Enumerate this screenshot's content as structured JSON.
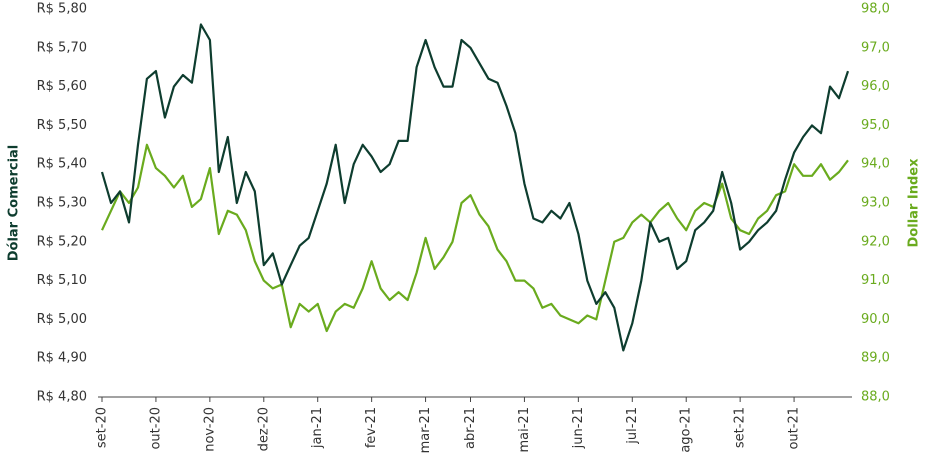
{
  "chart_data": {
    "type": "line",
    "y_label": "Dólar Comercial",
    "y2_label": "Dollar Index",
    "categories": [
      "set-20",
      null,
      null,
      null,
      null,
      null,
      "out-20",
      null,
      null,
      null,
      null,
      null,
      "nov-20",
      null,
      null,
      null,
      null,
      null,
      "dez-20",
      null,
      null,
      null,
      null,
      null,
      "jan-21",
      null,
      null,
      null,
      null,
      null,
      "fev-21",
      null,
      null,
      null,
      null,
      null,
      "mar-21",
      null,
      null,
      null,
      null,
      "abr-21",
      null,
      null,
      null,
      null,
      null,
      "mai-21",
      null,
      null,
      null,
      null,
      null,
      "jun-21",
      null,
      null,
      null,
      null,
      null,
      "jul-21",
      null,
      null,
      null,
      null,
      null,
      "ago-21",
      null,
      null,
      null,
      null,
      null,
      "set-21",
      null,
      null,
      null,
      null,
      null,
      "out-21",
      null,
      null,
      null,
      null,
      null,
      null
    ],
    "series": [
      {
        "name": "Dólar Comercial",
        "color": "#0e3d2f",
        "values": [
          5.38,
          5.3,
          5.33,
          5.25,
          5.45,
          5.62,
          5.64,
          5.52,
          5.6,
          5.63,
          5.61,
          5.76,
          5.72,
          5.38,
          5.47,
          5.3,
          5.38,
          5.33,
          5.14,
          5.17,
          5.09,
          5.14,
          5.19,
          5.21,
          5.28,
          5.35,
          5.45,
          5.3,
          5.4,
          5.45,
          5.42,
          5.38,
          5.4,
          5.46,
          5.46,
          5.65,
          5.72,
          5.65,
          5.6,
          5.6,
          5.72,
          5.7,
          5.66,
          5.62,
          5.61,
          5.55,
          5.48,
          5.35,
          5.26,
          5.25,
          5.28,
          5.26,
          5.3,
          5.22,
          5.1,
          5.04,
          5.07,
          5.03,
          4.92,
          4.99,
          5.1,
          5.25,
          5.2,
          5.21,
          5.13,
          5.15,
          5.23,
          5.25,
          5.28,
          5.38,
          5.3,
          5.18,
          5.2,
          5.23,
          5.25,
          5.28,
          5.36,
          5.43,
          5.47,
          5.5,
          5.48,
          5.6,
          5.57,
          5.64
        ]
      },
      {
        "name": "Dollar Index",
        "color": "#6aab1e",
        "axis": "y2",
        "values": [
          92.3,
          92.8,
          93.3,
          93.0,
          93.4,
          94.5,
          93.9,
          93.7,
          93.4,
          93.7,
          92.9,
          93.1,
          93.9,
          92.2,
          92.8,
          92.7,
          92.3,
          91.5,
          91.0,
          90.8,
          90.9,
          89.8,
          90.4,
          90.2,
          90.4,
          89.7,
          90.2,
          90.4,
          90.3,
          90.8,
          91.5,
          90.8,
          90.5,
          90.7,
          90.5,
          91.2,
          92.1,
          91.3,
          91.6,
          92.0,
          93.0,
          93.2,
          92.7,
          92.4,
          91.8,
          91.5,
          91.0,
          91.0,
          90.8,
          90.3,
          90.4,
          90.1,
          90.0,
          89.9,
          90.1,
          90.0,
          91.0,
          92.0,
          92.1,
          92.5,
          92.7,
          92.5,
          92.8,
          93.0,
          92.6,
          92.3,
          92.8,
          93.0,
          92.9,
          93.5,
          92.6,
          92.3,
          92.2,
          92.6,
          92.8,
          93.2,
          93.3,
          94.0,
          93.7,
          93.7,
          94.0,
          93.6,
          93.8,
          94.1
        ]
      }
    ],
    "ylim": [
      4.8,
      5.8
    ],
    "yticks": [
      {
        "value": 4.8,
        "label": "R$ 4,80"
      },
      {
        "value": 4.9,
        "label": "R$ 4,90"
      },
      {
        "value": 5.0,
        "label": "R$ 5,00"
      },
      {
        "value": 5.1,
        "label": "R$ 5,10"
      },
      {
        "value": 5.2,
        "label": "R$ 5,20"
      },
      {
        "value": 5.3,
        "label": "R$ 5,30"
      },
      {
        "value": 5.4,
        "label": "R$ 5,40"
      },
      {
        "value": 5.5,
        "label": "R$ 5,50"
      },
      {
        "value": 5.6,
        "label": "R$ 5,60"
      },
      {
        "value": 5.7,
        "label": "R$ 5,70"
      },
      {
        "value": 5.8,
        "label": "R$ 5,80"
      }
    ],
    "y2lim": [
      88,
      98
    ],
    "y2ticks": [
      {
        "value": 88,
        "label": "88,0"
      },
      {
        "value": 89,
        "label": "89,0"
      },
      {
        "value": 90,
        "label": "90,0"
      },
      {
        "value": 91,
        "label": "91,0"
      },
      {
        "value": 92,
        "label": "92,0"
      },
      {
        "value": 93,
        "label": "93,0"
      },
      {
        "value": 94,
        "label": "94,0"
      },
      {
        "value": 95,
        "label": "95,0"
      },
      {
        "value": 96,
        "label": "96,0"
      },
      {
        "value": 97,
        "label": "97,0"
      },
      {
        "value": 98,
        "label": "98,0"
      }
    ],
    "grid": false
  }
}
